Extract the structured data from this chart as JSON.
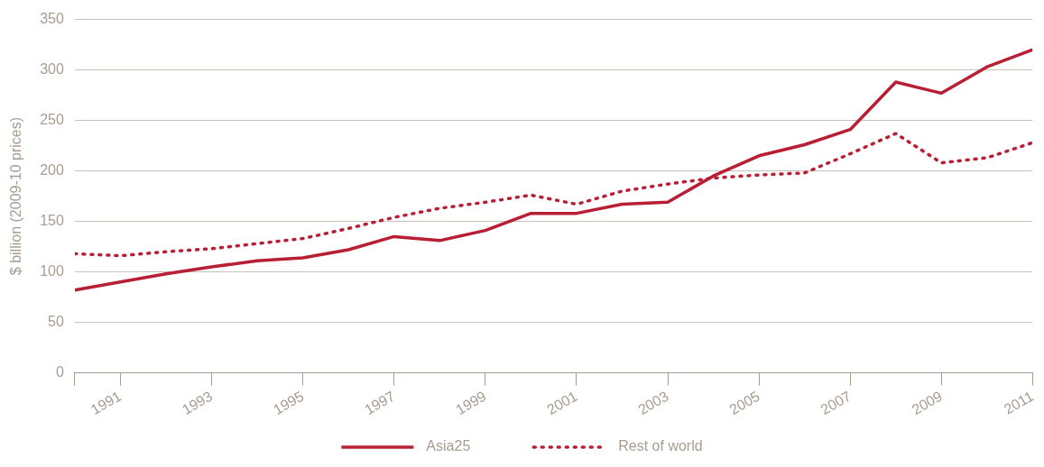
{
  "chart_data": {
    "type": "line",
    "ylabel": "$ billion (2009-10 prices)",
    "x": [
      1990,
      1991,
      1992,
      1993,
      1994,
      1995,
      1996,
      1997,
      1998,
      1999,
      2000,
      2001,
      2002,
      2003,
      2004,
      2005,
      2006,
      2007,
      2008,
      2009,
      2010,
      2011
    ],
    "series": [
      {
        "name": "Asia25",
        "color": "#b81e34",
        "line_style": "solid",
        "values": [
          82,
          90,
          98,
          105,
          111,
          114,
          122,
          135,
          131,
          141,
          158,
          158,
          167,
          169,
          195,
          215,
          226,
          241,
          288,
          277,
          303,
          320
        ]
      },
      {
        "name": "Rest of world",
        "color": "#b81e34",
        "line_style": "dotted",
        "values": [
          118,
          116,
          120,
          123,
          128,
          133,
          143,
          154,
          163,
          169,
          176,
          167,
          180,
          187,
          193,
          196,
          198,
          217,
          237,
          208,
          213,
          228
        ]
      }
    ],
    "xlim": [
      1990,
      2011
    ],
    "xticks": [
      {
        "value": 1990,
        "label": null
      },
      1991,
      1993,
      1995,
      1997,
      1999,
      2001,
      2003,
      2005,
      2007,
      2009,
      2011
    ],
    "ylim": [
      0,
      350
    ],
    "yticks": [
      0,
      50,
      100,
      150,
      200,
      250,
      300,
      350
    ],
    "grid": "y",
    "legend": "bottom",
    "marker": "none"
  }
}
